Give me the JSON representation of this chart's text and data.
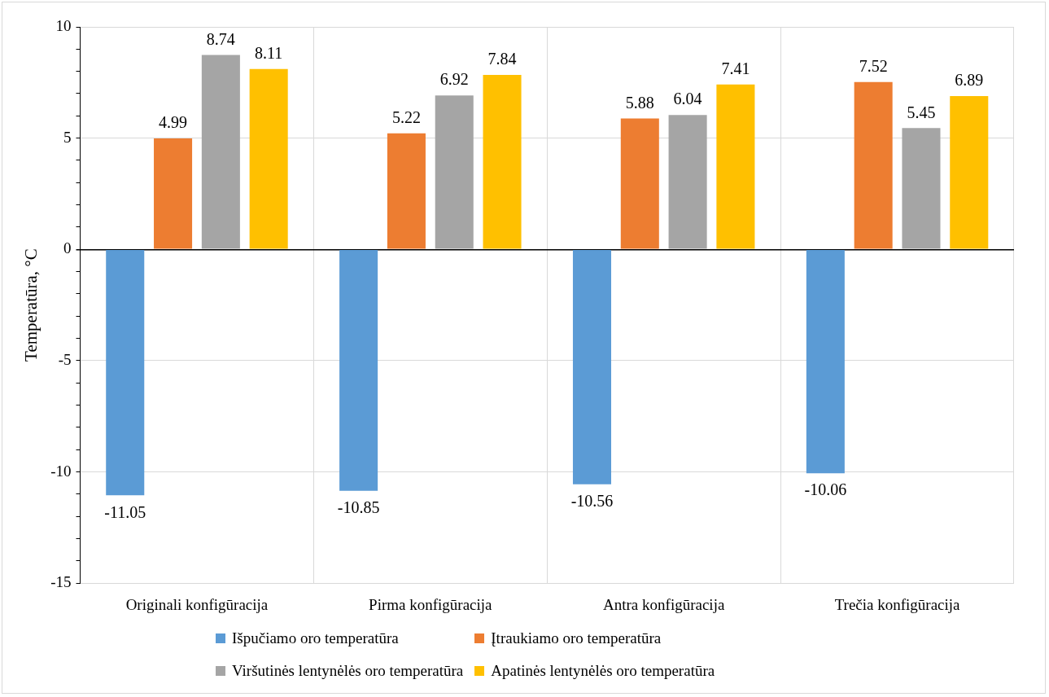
{
  "chart_data": {
    "type": "bar",
    "ylabel": "Temperatūra, °C",
    "categories": [
      "Originali konfigūracija",
      "Pirma konfigūracija",
      "Antra konfigūracija",
      "Trečia konfigūracija"
    ],
    "series": [
      {
        "name": "Išpučiamo oro temperatūra",
        "color": "#5b9bd5",
        "values": [
          -11.05,
          -10.85,
          -10.56,
          -10.06
        ]
      },
      {
        "name": "Įtraukiamo oro temperatūra",
        "color": "#ed7d31",
        "values": [
          4.99,
          5.22,
          5.88,
          7.52
        ]
      },
      {
        "name": "Viršutinės lentynėlės oro temperatūra",
        "color": "#a5a5a5",
        "values": [
          8.74,
          6.92,
          6.04,
          5.45
        ]
      },
      {
        "name": "Apatinės lentynėlės oro temperatūra",
        "color": "#ffc000",
        "values": [
          8.11,
          7.84,
          7.41,
          6.89
        ]
      }
    ],
    "ylim": [
      -15,
      10
    ],
    "yticks": [
      -15,
      {
        "value": -14,
        "label": null
      },
      {
        "value": -13,
        "label": null
      },
      {
        "value": -12,
        "label": null
      },
      {
        "value": -11,
        "label": null
      },
      -10,
      {
        "value": -9,
        "label": null
      },
      {
        "value": -8,
        "label": null
      },
      {
        "value": -7,
        "label": null
      },
      {
        "value": -6,
        "label": null
      },
      -5,
      {
        "value": -4,
        "label": null
      },
      {
        "value": -3,
        "label": null
      },
      {
        "value": -2,
        "label": null
      },
      {
        "value": -1,
        "label": null
      },
      0,
      {
        "value": 1,
        "label": null
      },
      {
        "value": 2,
        "label": null
      },
      {
        "value": 3,
        "label": null
      },
      {
        "value": 4,
        "label": null
      },
      5,
      {
        "value": 6,
        "label": null
      },
      {
        "value": 7,
        "label": null
      },
      {
        "value": 8,
        "label": null
      },
      {
        "value": 9,
        "label": null
      },
      10
    ],
    "grid": true,
    "legend": "bottom",
    "data_labels": true
  }
}
